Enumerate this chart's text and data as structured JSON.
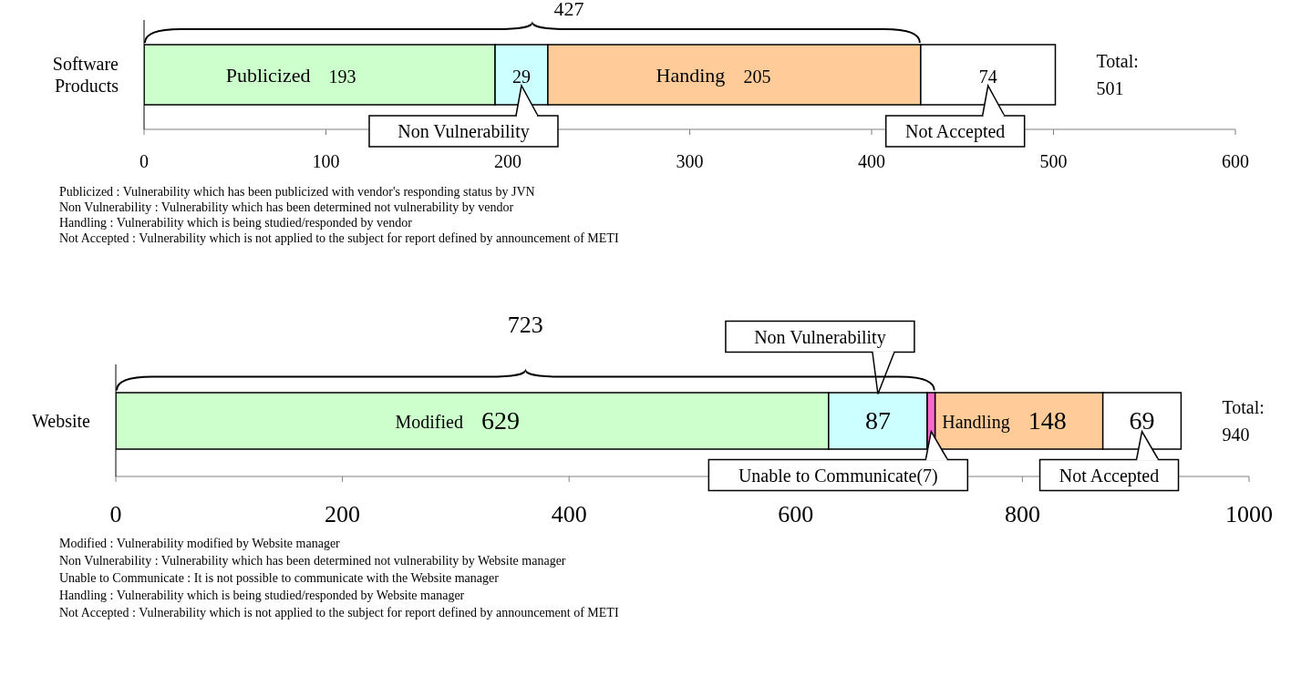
{
  "chart_data": [
    {
      "type": "bar",
      "orientation": "horizontal",
      "stacked": true,
      "categories": [
        "Software Products"
      ],
      "xlim": [
        0,
        600
      ],
      "xticks": [
        0,
        100,
        200,
        300,
        400,
        500,
        600
      ],
      "data_labels": true,
      "totals": [
        "Total: 501"
      ],
      "legend": "bottom",
      "series": [
        {
          "name": "Publicized",
          "color": "#ccffcc",
          "values": [
            193
          ]
        },
        {
          "name": "Non Vulnerability",
          "color": "#ccffff",
          "values": [
            29
          ]
        },
        {
          "name": "Handing",
          "color": "#ffcc99",
          "values": [
            205
          ]
        },
        {
          "name": "Not Accepted",
          "color": "#ffffff",
          "values": [
            74
          ]
        }
      ],
      "annotations": [
        "427",
        "Publicized : Vulnerability which has been publicized with vendor's responding status by JVN",
        "Non Vulnerability : Vulnerability which has been determined not vulnerability by vendor",
        "Handling : Vulnerability which is being studied/responded by vendor",
        "Not Accepted : Vulnerability which is not applied to the subject for report defined by announcement of METI"
      ]
    },
    {
      "type": "bar",
      "orientation": "horizontal",
      "stacked": true,
      "categories": [
        "Website"
      ],
      "xlim": [
        0,
        1000
      ],
      "xticks": [
        0,
        200,
        400,
        600,
        800,
        1000
      ],
      "data_labels": true,
      "totals": [
        "Total: 940"
      ],
      "legend": "bottom",
      "series": [
        {
          "name": "Modified",
          "color": "#ccffcc",
          "values": [
            629
          ]
        },
        {
          "name": "Non Vulnerability",
          "color": "#ccffff",
          "values": [
            87
          ]
        },
        {
          "name": "Unable to Communicate",
          "color": "#ff66cc",
          "values": [
            7
          ],
          "value_labels": [
            "(7)"
          ]
        },
        {
          "name": "Handling",
          "color": "#ffcc99",
          "values": [
            148
          ]
        },
        {
          "name": "Not Accepted",
          "color": "#ffffff",
          "values": [
            69
          ]
        }
      ],
      "annotations": [
        "723",
        "Modified : Vulnerability modified by Website manager",
        "Non Vulnerability : Vulnerability which has been determined not vulnerability by Website manager",
        "Unable to Communicate : It is not possible to communicate with the Website manager",
        "Handling : Vulnerability which is being studied/responded by Website manager",
        "Not Accepted : Vulnerability which is not applied to the subject for report defined by announcement of METI"
      ]
    }
  ]
}
